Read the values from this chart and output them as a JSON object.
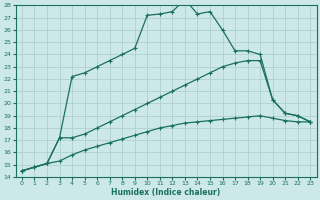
{
  "xlabel": "Humidex (Indice chaleur)",
  "bg_color": "#cce8e8",
  "line_color": "#1a7060",
  "grid_color": "#aacccc",
  "xlim": [
    -0.5,
    23.5
  ],
  "ylim": [
    14,
    28
  ],
  "xticks": [
    0,
    1,
    2,
    3,
    4,
    5,
    6,
    7,
    8,
    9,
    10,
    11,
    12,
    13,
    14,
    15,
    16,
    17,
    18,
    19,
    20,
    21,
    22,
    23
  ],
  "yticks": [
    14,
    15,
    16,
    17,
    18,
    19,
    20,
    21,
    22,
    23,
    24,
    25,
    26,
    27,
    28
  ],
  "line1_x": [
    0,
    1,
    2,
    3,
    4,
    5,
    6,
    7,
    8,
    9,
    10,
    11,
    12,
    13,
    14,
    15,
    16,
    17,
    18,
    19,
    20,
    21,
    22,
    23
  ],
  "line1_y": [
    14.5,
    14.8,
    15.1,
    17.2,
    22.2,
    22.5,
    23.0,
    23.5,
    24.0,
    24.5,
    27.2,
    27.3,
    27.5,
    28.5,
    27.3,
    27.5,
    26.0,
    24.3,
    24.3,
    24.0,
    20.3,
    19.2,
    19.0,
    18.5
  ],
  "line2_x": [
    0,
    1,
    2,
    3,
    4,
    5,
    6,
    7,
    8,
    9,
    10,
    11,
    12,
    13,
    14,
    15,
    16,
    17,
    18,
    19,
    20,
    21,
    22,
    23
  ],
  "line2_y": [
    14.5,
    14.8,
    15.1,
    17.2,
    17.2,
    17.5,
    18.0,
    18.5,
    19.0,
    19.5,
    20.0,
    20.5,
    21.0,
    21.5,
    22.0,
    22.5,
    23.0,
    23.3,
    23.5,
    23.5,
    20.3,
    19.2,
    19.0,
    18.5
  ],
  "line3_x": [
    0,
    1,
    2,
    3,
    4,
    5,
    6,
    7,
    8,
    9,
    10,
    11,
    12,
    13,
    14,
    15,
    16,
    17,
    18,
    19,
    20,
    21,
    22,
    23
  ],
  "line3_y": [
    14.5,
    14.8,
    15.1,
    15.3,
    15.8,
    16.2,
    16.5,
    16.8,
    17.1,
    17.4,
    17.7,
    18.0,
    18.2,
    18.4,
    18.5,
    18.6,
    18.7,
    18.8,
    18.9,
    19.0,
    18.8,
    18.6,
    18.5,
    18.5
  ]
}
